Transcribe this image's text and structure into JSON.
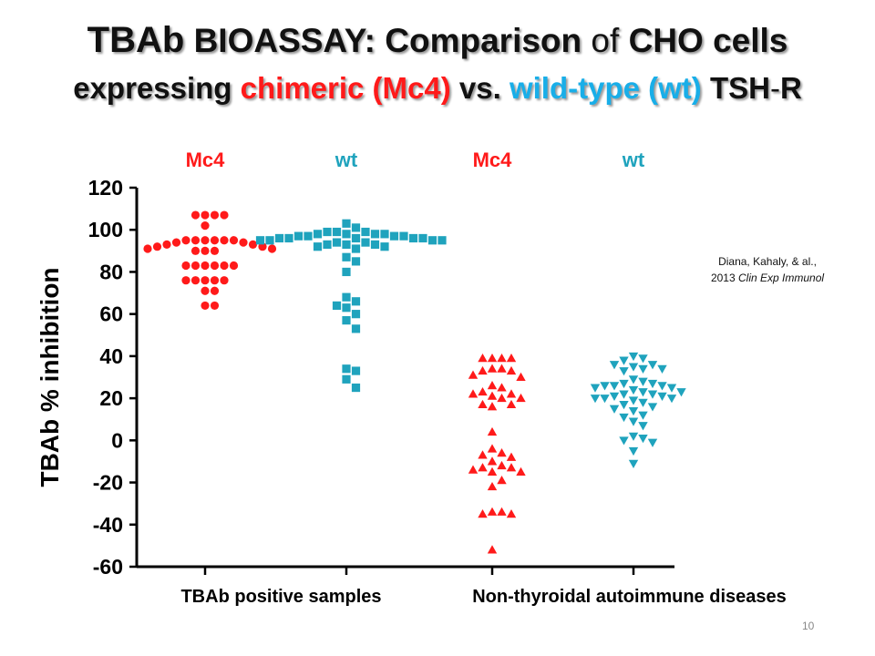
{
  "title": {
    "line1": {
      "tbab": "TBAb",
      "bioassay": "BIOASSAY:",
      "comparison": "Comparison",
      "of": "of",
      "cho": "CHO cells"
    },
    "line2": {
      "expressing": "expressing",
      "chimeric": "chimeric (Mc4)",
      "vs": "vs.",
      "wildtype": "wild-type (wt)",
      "tsh": "TSH",
      "dash": "-",
      "r": "R"
    }
  },
  "citation": {
    "line1": "Diana, Kahaly, & al.,",
    "year": "2013",
    "journal": "Clin Exp Immunol"
  },
  "page_number": "10",
  "colors": {
    "mc4": "#ff1a1a",
    "wt": "#1fa3bd",
    "title_red": "#ff1a1a",
    "title_blue": "#19aee8"
  },
  "chart_data": {
    "type": "scatter",
    "ylabel": "TBAb % inhibition",
    "ylim": [
      -60,
      120
    ],
    "yticks": [
      120,
      100,
      80,
      60,
      40,
      20,
      0,
      -20,
      -40,
      -60
    ],
    "group_labels": [
      "TBAb positive samples",
      "Non-thyroidal autoimmune diseases"
    ],
    "series": [
      {
        "name": "Mc4",
        "group": "TBAb positive samples",
        "color": "#ff1a1a",
        "marker": "circle",
        "values": [
          107,
          107,
          107,
          107,
          102,
          95,
          95,
          95,
          95,
          95,
          95,
          94,
          94,
          93,
          93,
          92,
          92,
          91,
          91,
          90,
          90,
          90,
          83,
          83,
          83,
          83,
          83,
          83,
          76,
          76,
          76,
          76,
          76,
          71,
          71,
          64,
          64
        ]
      },
      {
        "name": "wt",
        "group": "TBAb positive samples",
        "color": "#1fa3bd",
        "marker": "square",
        "values": [
          103,
          101,
          99,
          99,
          99,
          98,
          98,
          98,
          98,
          97,
          97,
          97,
          97,
          96,
          96,
          96,
          96,
          96,
          95,
          95,
          95,
          95,
          94,
          94,
          93,
          93,
          93,
          92,
          92,
          91,
          87,
          85,
          80,
          68,
          66,
          64,
          63,
          60,
          57,
          53,
          34,
          33,
          29,
          25
        ]
      },
      {
        "name": "Mc4",
        "group": "Non-thyroidal autoimmune diseases",
        "color": "#ff1a1a",
        "marker": "triangle-up",
        "values": [
          39,
          39,
          39,
          39,
          34,
          34,
          33,
          33,
          31,
          30,
          26,
          25,
          23,
          22,
          22,
          21,
          20,
          20,
          17,
          17,
          16,
          4,
          -4,
          -6,
          -7,
          -8,
          -10,
          -12,
          -13,
          -13,
          -14,
          -15,
          -15,
          -19,
          -22,
          -34,
          -34,
          -35,
          -35,
          -52
        ]
      },
      {
        "name": "wt",
        "group": "Non-thyroidal autoimmune diseases",
        "color": "#1fa3bd",
        "marker": "triangle-down",
        "values": [
          40,
          39,
          38,
          36,
          36,
          35,
          34,
          34,
          33,
          29,
          28,
          27,
          27,
          26,
          26,
          26,
          25,
          25,
          24,
          23,
          23,
          22,
          22,
          21,
          21,
          20,
          20,
          20,
          19,
          18,
          17,
          16,
          15,
          14,
          12,
          11,
          9,
          7,
          2,
          1,
          0,
          -1,
          -5,
          -11
        ]
      }
    ]
  }
}
